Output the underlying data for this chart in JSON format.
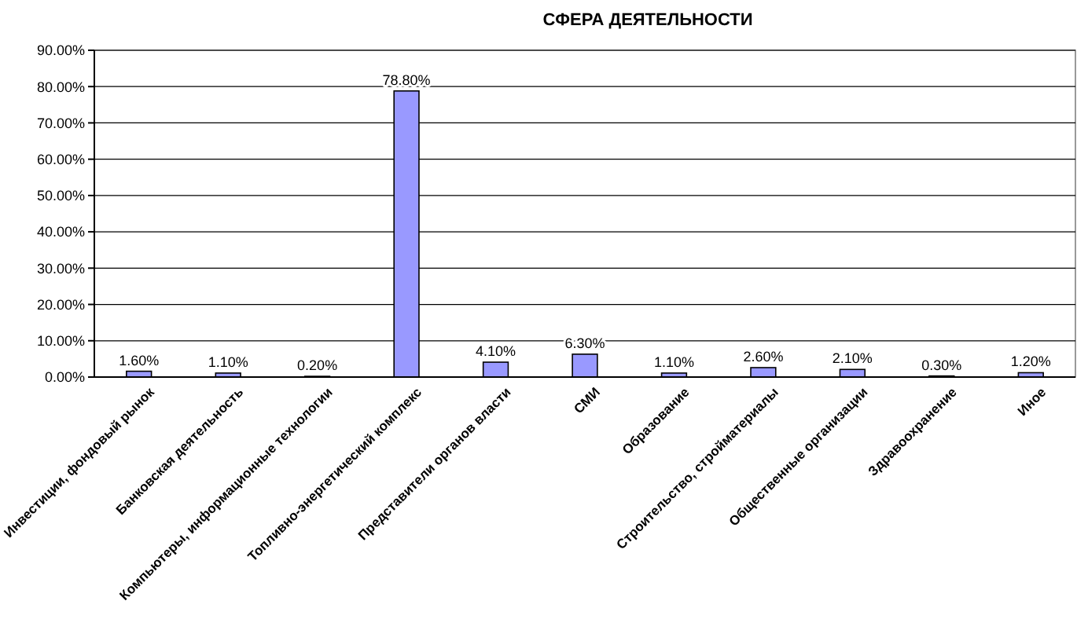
{
  "chart_data": {
    "type": "bar",
    "title": "СФЕРА ДЕЯТЕЛЬНОСТИ",
    "categories": [
      "Инвестиции, фондовый рынок",
      "Банковская деятельность",
      "Компьютеры, информационные технологии",
      "Топливно-энергетический комплекс",
      "Представители органов власти",
      "СМИ",
      "Образование",
      "Строительство, стройматериалы",
      "Общественные организации",
      "Здравоохранение",
      "Иное"
    ],
    "values": [
      1.6,
      1.1,
      0.2,
      78.8,
      4.1,
      6.3,
      1.1,
      2.6,
      2.1,
      0.3,
      1.2
    ],
    "value_labels": [
      "1.60%",
      "1.10%",
      "0.20%",
      "78.80%",
      "4.10%",
      "6.30%",
      "1.10%",
      "2.60%",
      "2.10%",
      "0.30%",
      "1.20%"
    ],
    "color": "#9999ff",
    "ylim": [
      0,
      90
    ],
    "yticks": [
      {
        "value": 0,
        "label": "0.00%"
      },
      {
        "value": 10,
        "label": "10.00%"
      },
      {
        "value": 20,
        "label": "20.00%"
      },
      {
        "value": 30,
        "label": "30.00%"
      },
      {
        "value": 40,
        "label": "40.00%"
      },
      {
        "value": 50,
        "label": "50.00%"
      },
      {
        "value": 60,
        "label": "60.00%"
      },
      {
        "value": 70,
        "label": "70.00%"
      },
      {
        "value": 80,
        "label": "80.00%"
      },
      {
        "value": 90,
        "label": "90.00%"
      }
    ],
    "grid": "y"
  }
}
